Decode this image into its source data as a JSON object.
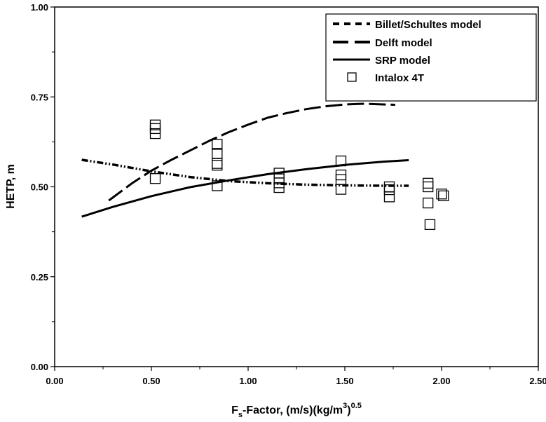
{
  "chart_data": {
    "type": "line",
    "xlabel": {
      "prefix": "F",
      "sub": "s",
      "mid": "-Factor, (m/s)(kg/m",
      "sup1": "3",
      "close": ")",
      "sup2": "0.5"
    },
    "ylabel": "HETP,  m",
    "xlim": [
      0,
      2.5
    ],
    "ylim": [
      0,
      1
    ],
    "x_ticks": [
      "0.00",
      "0.50",
      "1.00",
      "1.50",
      "2.00",
      "2.50"
    ],
    "y_ticks": [
      "0.00",
      "0.25",
      "0.50",
      "0.75",
      "1.00"
    ],
    "legend_position": "top-right",
    "series": [
      {
        "name": "Billet/Schultes model",
        "style": "dash-dot",
        "x": [
          0.14,
          0.3,
          0.5,
          0.7,
          0.9,
          1.1,
          1.3,
          1.5,
          1.7,
          1.83
        ],
        "y": [
          0.575,
          0.562,
          0.543,
          0.527,
          0.516,
          0.51,
          0.506,
          0.504,
          0.503,
          0.503
        ]
      },
      {
        "name": "Delft model",
        "style": "long-dash",
        "x": [
          0.28,
          0.4,
          0.5,
          0.6,
          0.7,
          0.8,
          0.9,
          1.0,
          1.1,
          1.2,
          1.3,
          1.4,
          1.5,
          1.6,
          1.7,
          1.76
        ],
        "y": [
          0.462,
          0.51,
          0.545,
          0.574,
          0.601,
          0.628,
          0.652,
          0.673,
          0.692,
          0.705,
          0.716,
          0.724,
          0.729,
          0.731,
          0.729,
          0.728
        ]
      },
      {
        "name": "SRP model",
        "style": "solid",
        "x": [
          0.14,
          0.3,
          0.5,
          0.7,
          0.9,
          1.1,
          1.3,
          1.5,
          1.7,
          1.83
        ],
        "y": [
          0.417,
          0.444,
          0.474,
          0.499,
          0.518,
          0.535,
          0.549,
          0.561,
          0.57,
          0.574
        ]
      },
      {
        "name": "Intalox 4T",
        "style": "open-square",
        "x": [
          0.52,
          0.52,
          0.52,
          0.52,
          0.84,
          0.84,
          0.84,
          0.84,
          0.84,
          1.16,
          1.16,
          1.16,
          1.16,
          1.48,
          1.48,
          1.48,
          1.48,
          1.73,
          1.73,
          1.73,
          1.93,
          1.93,
          1.93,
          1.94,
          2.0,
          2.01
        ],
        "y": [
          0.672,
          0.662,
          0.648,
          0.523,
          0.618,
          0.593,
          0.565,
          0.56,
          0.503,
          0.538,
          0.522,
          0.511,
          0.498,
          0.572,
          0.533,
          0.52,
          0.493,
          0.5,
          0.492,
          0.472,
          0.51,
          0.5,
          0.455,
          0.395,
          0.48,
          0.475
        ]
      }
    ]
  }
}
